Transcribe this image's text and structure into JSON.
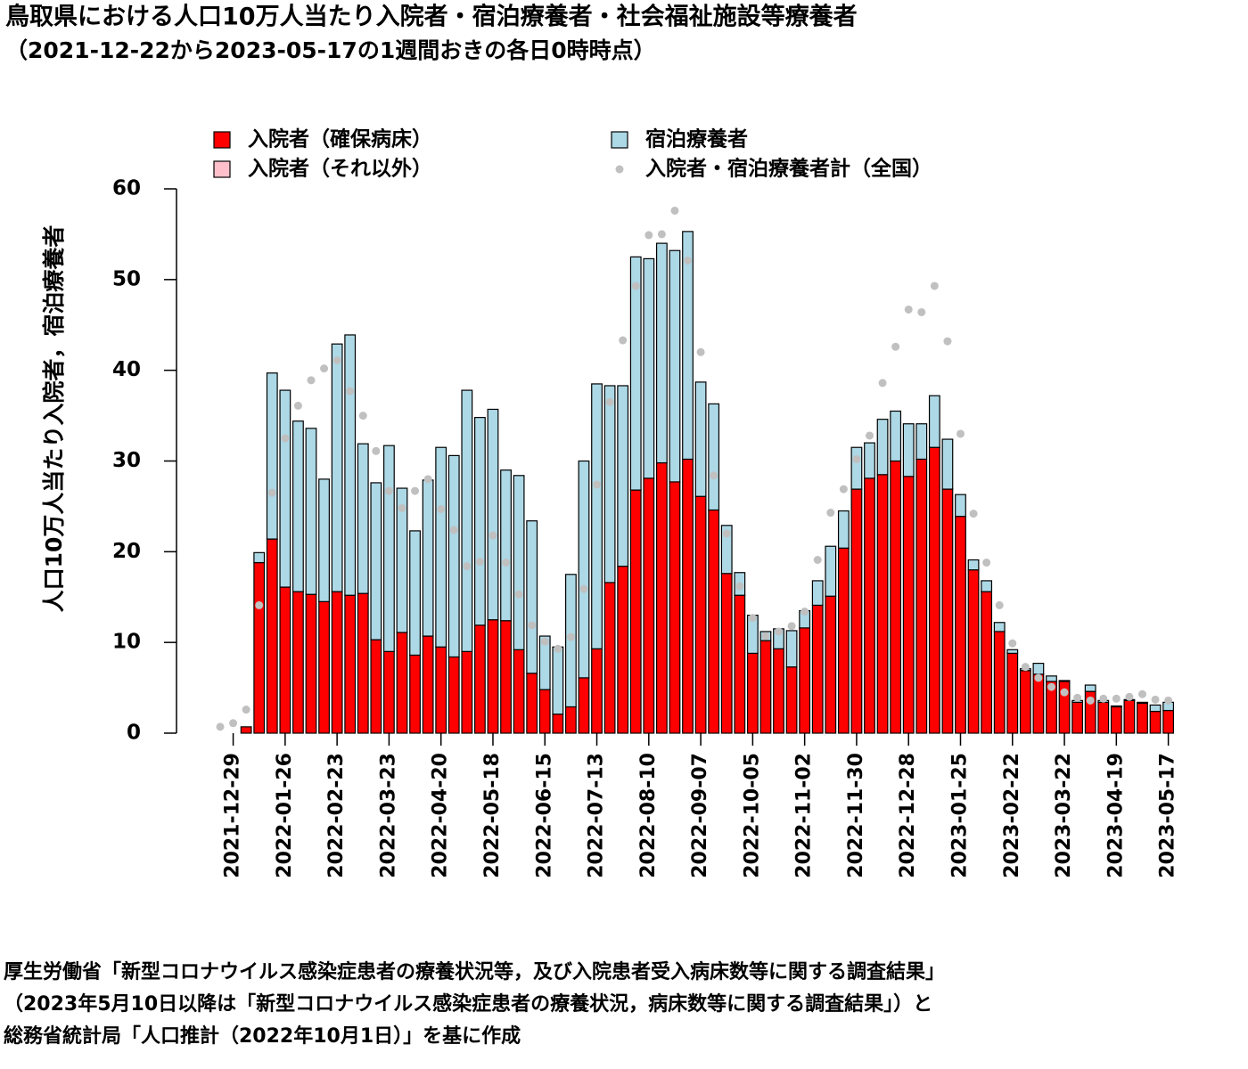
{
  "chart_data": {
    "type": "bar",
    "stacked": true,
    "title": "鳥取県における人口10万人当たり入院者・宿泊療養者・社会福祉施設等療養者",
    "subtitle": "（2021-12-22から2023-05-17の1週間おきの各日0時時点）",
    "ylabel": "人口10万人当たり入院者，宿泊療養者",
    "ylim": [
      0,
      60
    ],
    "yticks": [
      0,
      10,
      20,
      30,
      40,
      50,
      60
    ],
    "categories": [
      null,
      "2021-12-29",
      null,
      null,
      null,
      "2022-01-26",
      null,
      null,
      null,
      "2022-02-23",
      null,
      null,
      null,
      "2022-03-23",
      null,
      null,
      null,
      "2022-04-20",
      null,
      null,
      null,
      "2022-05-18",
      null,
      null,
      null,
      "2022-06-15",
      null,
      null,
      null,
      "2022-07-13",
      null,
      null,
      null,
      "2022-08-10",
      null,
      null,
      null,
      "2022-09-07",
      null,
      null,
      null,
      "2022-10-05",
      null,
      null,
      null,
      "2022-11-02",
      null,
      null,
      null,
      "2022-11-30",
      null,
      null,
      null,
      "2022-12-28",
      null,
      null,
      null,
      "2023-01-25",
      null,
      null,
      null,
      "2023-02-22",
      null,
      null,
      null,
      "2023-03-22",
      null,
      null,
      null,
      "2023-04-19",
      null,
      null,
      null,
      "2023-05-17"
    ],
    "series": [
      {
        "name": "入院者（確保病床）",
        "color": "#ff0000",
        "values": [
          0,
          0,
          0.7,
          18.8,
          21.4,
          16.1,
          15.6,
          15.3,
          14.5,
          15.6,
          15.2,
          15.4,
          10.3,
          9.0,
          11.1,
          8.6,
          10.7,
          9.5,
          8.4,
          9.0,
          11.9,
          12.5,
          12.4,
          9.2,
          6.6,
          4.8,
          2.1,
          2.9,
          6.1,
          9.3,
          16.6,
          18.4,
          26.8,
          28.1,
          29.8,
          27.7,
          30.2,
          26.1,
          24.6,
          17.6,
          15.2,
          8.8,
          10.2,
          9.3,
          7.3,
          11.6,
          14.1,
          15.1,
          20.4,
          26.9,
          28.1,
          28.5,
          30.0,
          28.3,
          30.2,
          31.5,
          26.9,
          23.9,
          18.0,
          15.6,
          11.2,
          8.8,
          6.9,
          6.5,
          5.7,
          5.7,
          3.4,
          4.6,
          3.4,
          2.9,
          3.6,
          3.3,
          2.4,
          2.5
        ]
      },
      {
        "name": "入院者（それ以外）",
        "color": "#ffc0cb",
        "values": [
          0,
          0,
          0,
          0,
          0,
          0,
          0,
          0,
          0,
          0,
          0,
          0,
          0,
          0,
          0,
          0,
          0,
          0,
          0,
          0,
          0,
          0,
          0,
          0,
          0,
          0,
          0,
          0,
          0,
          0,
          0,
          0,
          0,
          0,
          0,
          0,
          0,
          0,
          0,
          0,
          0,
          0,
          0,
          0,
          0,
          0,
          0,
          0,
          0,
          0,
          0,
          0,
          0,
          0,
          0,
          0,
          0,
          0,
          0,
          0,
          0,
          0,
          0,
          0,
          0,
          0,
          0,
          0,
          0,
          0,
          0,
          0,
          0,
          0
        ]
      },
      {
        "name": "宿泊療養者",
        "color": "#add8e6",
        "values": [
          0,
          0,
          0,
          1.1,
          18.3,
          21.7,
          18.8,
          18.3,
          13.5,
          27.3,
          28.7,
          16.5,
          17.3,
          22.7,
          15.9,
          13.7,
          17.2,
          22.0,
          22.2,
          28.8,
          22.9,
          23.2,
          16.6,
          19.2,
          16.8,
          5.9,
          7.4,
          14.6,
          23.9,
          29.2,
          21.7,
          19.9,
          25.7,
          24.2,
          24.2,
          25.5,
          25.1,
          12.6,
          11.7,
          5.3,
          2.5,
          4.2,
          1.0,
          2.2,
          4.0,
          1.9,
          2.7,
          5.5,
          4.1,
          4.6,
          3.9,
          6.1,
          5.5,
          5.8,
          3.9,
          5.7,
          5.5,
          2.4,
          1.1,
          1.2,
          1.0,
          0.4,
          0.2,
          1.2,
          0.6,
          0.1,
          0.2,
          0.7,
          0.2,
          0.1,
          0.1,
          0.1,
          0.7,
          0.9
        ]
      },
      {
        "name": "入院者・宿泊療養者計（全国）",
        "type": "scatter",
        "color": "#c0c0c0",
        "values": [
          0.7,
          1.1,
          2.6,
          14.1,
          26.5,
          32.5,
          36.1,
          38.9,
          40.2,
          41.1,
          37.7,
          35.0,
          31.1,
          26.7,
          24.8,
          26.7,
          28.0,
          24.7,
          22.4,
          18.4,
          18.9,
          21.8,
          18.8,
          15.3,
          11.9,
          10.1,
          9.3,
          10.6,
          15.9,
          27.4,
          36.5,
          43.3,
          49.3,
          54.9,
          55.0,
          57.6,
          52.1,
          42.0,
          28.4,
          22.0,
          16.2,
          12.7,
          10.7,
          11.2,
          11.8,
          13.4,
          19.1,
          24.3,
          26.9,
          30.2,
          32.8,
          38.6,
          42.6,
          46.7,
          46.4,
          49.3,
          43.2,
          33.0,
          24.2,
          18.8,
          14.1,
          9.9,
          7.3,
          6.1,
          5.1,
          4.5,
          3.9,
          3.6,
          3.8,
          3.8,
          4.0,
          4.3,
          3.7,
          3.6
        ]
      }
    ],
    "notes": [
      "厚生労働省「新型コロナウイルス感染症患者の療養状況等，及び入院患者受入病床数等に関する調査結果」",
      "（2023年5月10日以降は「新型コロナウイルス感染症患者の療養状況，病床数等に関する調査結果」）と",
      "総務省統計局「人口推計（2022年10月1日）」を基に作成"
    ]
  }
}
